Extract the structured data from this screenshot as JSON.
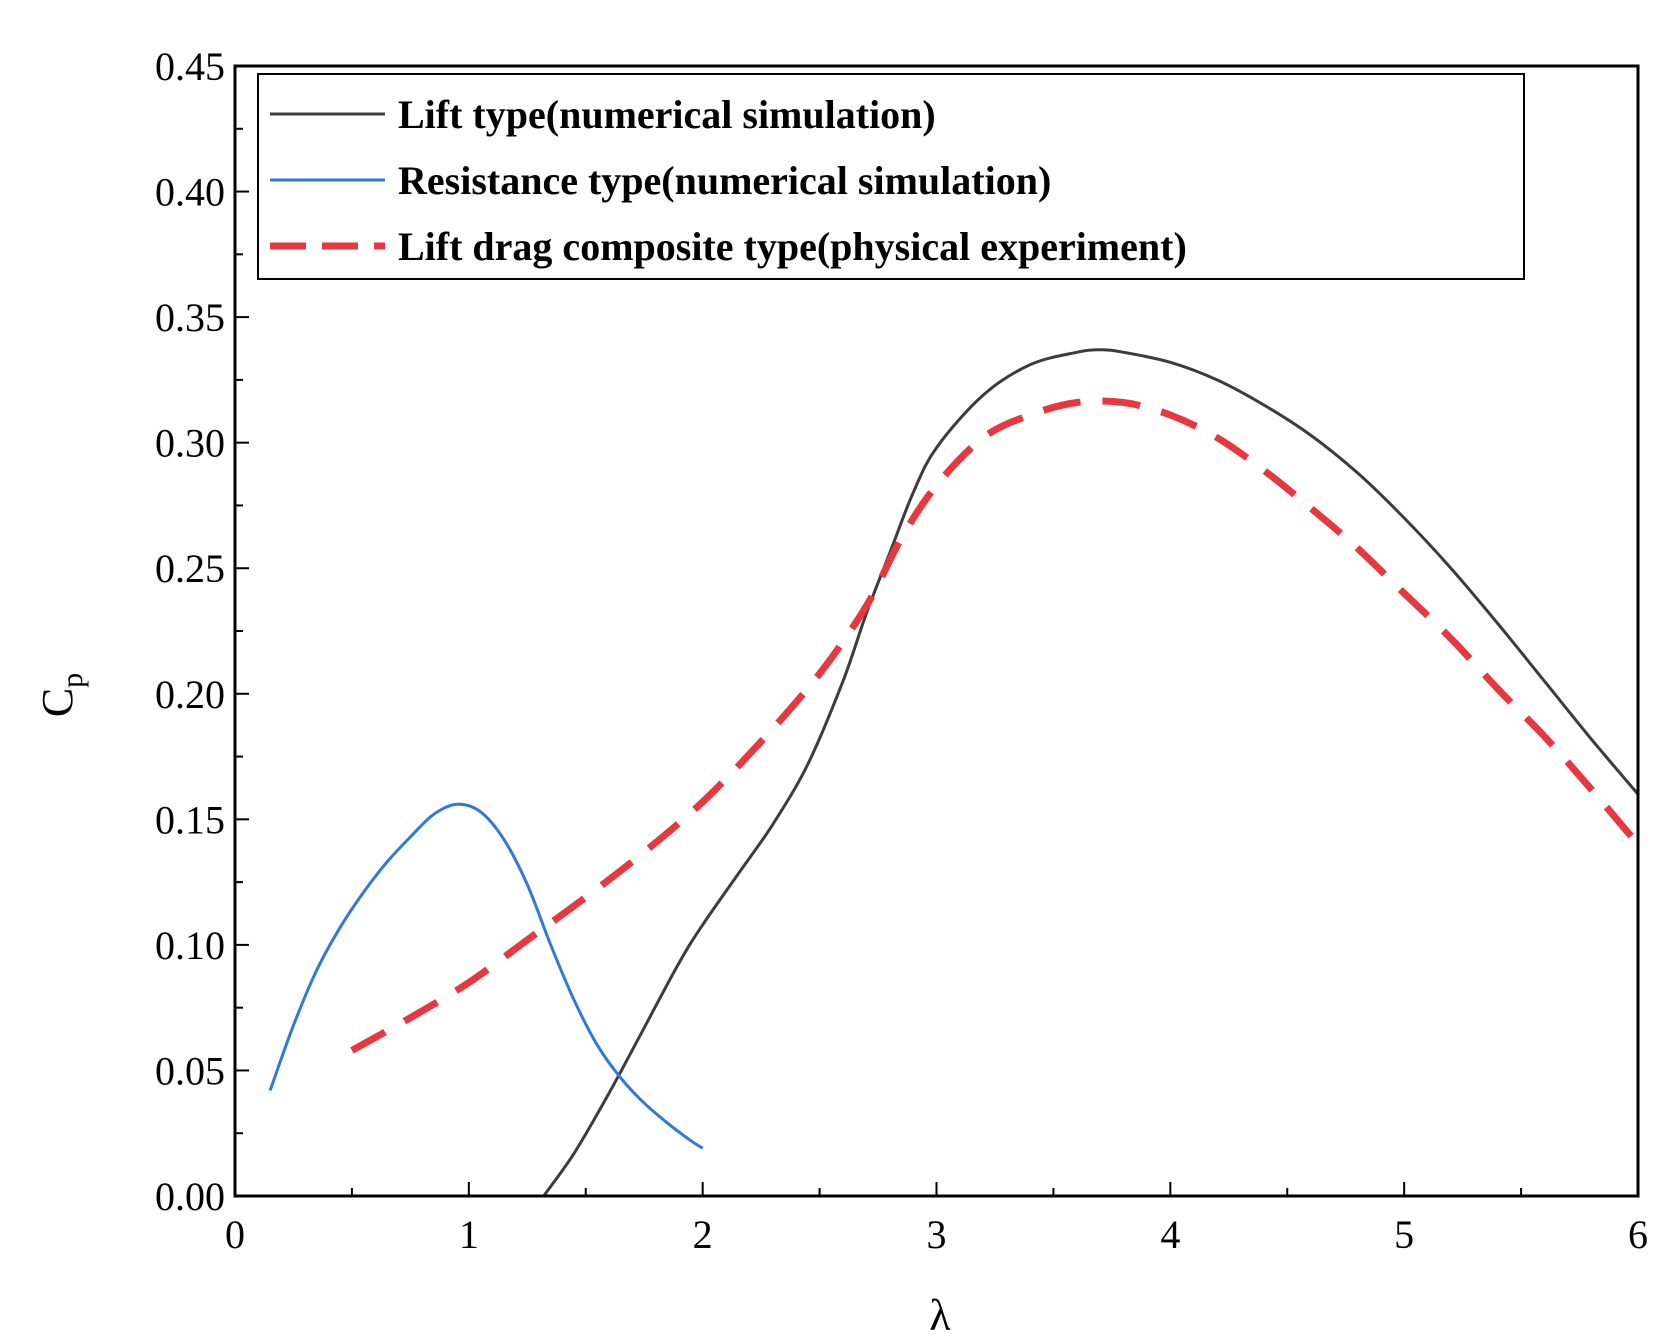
{
  "chart_data": {
    "type": "line",
    "title": "",
    "xlabel": "λ",
    "ylabel": {
      "main": "C",
      "sub": "p"
    },
    "xlim": [
      0,
      6
    ],
    "ylim": [
      0,
      0.45
    ],
    "grid": false,
    "legend_position": "top-left",
    "x_ticks": [
      0,
      1,
      2,
      3,
      4,
      5,
      6
    ],
    "x_tick_labels": [
      "0",
      "1",
      "2",
      "3",
      "4",
      "5",
      "6"
    ],
    "y_ticks": [
      0,
      0.05,
      0.1,
      0.15,
      0.2,
      0.25,
      0.3,
      0.35,
      0.4,
      0.45
    ],
    "y_tick_labels": [
      "0.00",
      "0.05",
      "0.10",
      "0.15",
      "0.20",
      "0.25",
      "0.30",
      "0.35",
      "0.40",
      "0.45"
    ],
    "series": [
      {
        "name": "Lift type(numerical simulation)",
        "color": "#3c3c3c",
        "dash": "solid",
        "x": [
          1.32,
          1.45,
          1.6,
          1.75,
          1.9,
          2.0,
          2.15,
          2.3,
          2.45,
          2.6,
          2.7,
          2.8,
          2.9,
          3.0,
          3.2,
          3.4,
          3.6,
          3.7,
          3.8,
          4.0,
          4.2,
          4.4,
          4.6,
          4.8,
          5.0,
          5.2,
          5.4,
          5.6,
          5.8,
          6.0
        ],
        "y": [
          0.0,
          0.017,
          0.041,
          0.067,
          0.093,
          0.108,
          0.128,
          0.148,
          0.172,
          0.205,
          0.232,
          0.256,
          0.28,
          0.298,
          0.319,
          0.331,
          0.336,
          0.337,
          0.336,
          0.332,
          0.325,
          0.315,
          0.303,
          0.288,
          0.27,
          0.25,
          0.228,
          0.205,
          0.182,
          0.16
        ]
      },
      {
        "name": "Resistance type(numerical simulation)",
        "color": "#2f7ad9",
        "dash": "solid",
        "x": [
          0.15,
          0.25,
          0.35,
          0.45,
          0.55,
          0.65,
          0.75,
          0.85,
          0.95,
          1.05,
          1.15,
          1.25,
          1.35,
          1.45,
          1.55,
          1.65,
          1.75,
          1.85,
          1.95,
          2.0
        ],
        "y": [
          0.042,
          0.068,
          0.09,
          0.107,
          0.121,
          0.133,
          0.143,
          0.152,
          0.156,
          0.153,
          0.142,
          0.124,
          0.1,
          0.078,
          0.06,
          0.047,
          0.037,
          0.029,
          0.022,
          0.019
        ]
      },
      {
        "name": "Lift drag composite type(physical experiment)",
        "color": "#e8383f",
        "dash": "dashed",
        "x": [
          0.5,
          0.75,
          1.0,
          1.25,
          1.5,
          1.75,
          2.0,
          2.25,
          2.5,
          2.7,
          2.85,
          3.0,
          3.2,
          3.4,
          3.6,
          3.8,
          4.0,
          4.2,
          4.4,
          4.6,
          4.8,
          5.0,
          5.2,
          5.4,
          5.6,
          5.8,
          6.0
        ],
        "y": [
          0.058,
          0.071,
          0.085,
          0.102,
          0.119,
          0.137,
          0.157,
          0.181,
          0.208,
          0.235,
          0.262,
          0.283,
          0.302,
          0.311,
          0.316,
          0.316,
          0.311,
          0.302,
          0.289,
          0.274,
          0.258,
          0.24,
          0.222,
          0.202,
          0.183,
          0.162,
          0.14
        ]
      }
    ]
  }
}
